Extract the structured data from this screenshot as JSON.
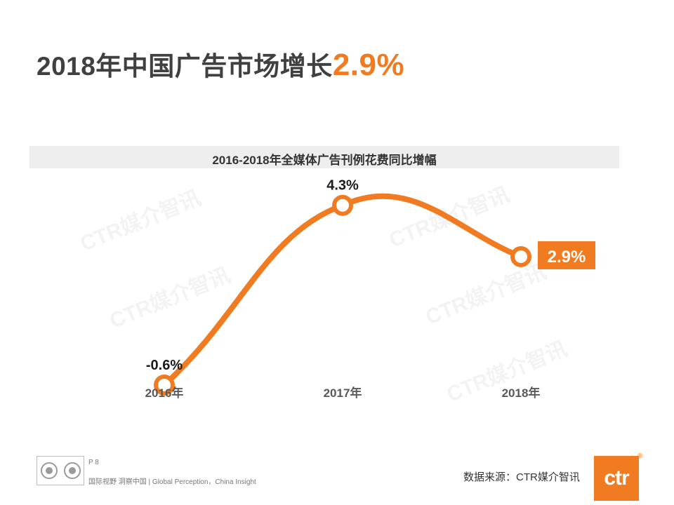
{
  "header": {
    "title": "2018年中国广告市场增长",
    "highlight": "2.9%"
  },
  "chart_data": {
    "type": "line",
    "title": "2016-2018年全媒体广告刊例花费同比增幅",
    "categories": [
      "2016年",
      "2017年",
      "2018年"
    ],
    "values": [
      -0.6,
      4.3,
      2.9
    ],
    "data_labels": [
      "-0.6%",
      "4.3%",
      "2.9%"
    ],
    "ylim": [
      -1.5,
      5.5
    ],
    "grid": false,
    "legend": "none"
  },
  "watermark": "CTR媒介智讯",
  "footer": {
    "page": "P 8",
    "slogan": "国际视野  洞察中国 |  Global Perception，China Insight",
    "source": "数据来源：CTR媒介智讯",
    "brand": "ctr",
    "reg_mark": "®"
  },
  "colors": {
    "accent": "#f07b20",
    "title_text": "#404040",
    "axis_text": "#595959"
  }
}
